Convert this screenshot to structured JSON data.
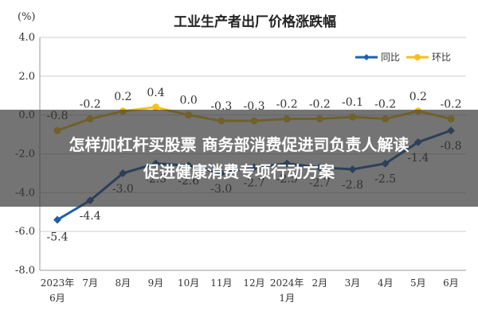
{
  "headline": {
    "line1": "怎样加杠杆买股票 商务部消费促进司负责人解读",
    "line2": "促进健康消费专项行动方案"
  },
  "colors": {
    "yoy": "#1f5fa8",
    "mom": "#f2c21b",
    "grid": "#cfcfcf",
    "band": "#323232"
  },
  "chart_data": {
    "type": "line",
    "title": "工业生产者出厂价格涨跌幅",
    "unit_label": "(%)",
    "ylim": [
      -8.0,
      4.0
    ],
    "yticks": [
      4.0,
      2.0,
      0.0,
      -2.0,
      -4.0,
      -6.0,
      -8.0
    ],
    "ytick_labels": [
      "4.0",
      "2.0",
      "0.0",
      "-2.0",
      "-4.0",
      "-6.0",
      "-8.0"
    ],
    "grid": true,
    "legend_position": "top-right",
    "categories": [
      [
        "2023年",
        "6月"
      ],
      [
        "7月"
      ],
      [
        "8月"
      ],
      [
        "9月"
      ],
      [
        "10月"
      ],
      [
        "11月"
      ],
      [
        "12月"
      ],
      [
        "2024年",
        "1月"
      ],
      [
        "2月"
      ],
      [
        "3月"
      ],
      [
        "4月"
      ],
      [
        "5月"
      ],
      [
        "6月"
      ]
    ],
    "series": [
      {
        "name": "同比",
        "color": "#1f5fa8",
        "values": [
          -5.4,
          -4.4,
          -3.0,
          -2.5,
          -2.6,
          -3.0,
          -2.7,
          -2.5,
          -2.7,
          -2.8,
          -2.5,
          -1.4,
          -0.8
        ],
        "labels": [
          "-5.4",
          "-4.4",
          "-3.0",
          "-2.5",
          "-2.6",
          "-3.0",
          "-2.7",
          "-2.5",
          "-2.7",
          "-2.8",
          "-2.5",
          "-1.4",
          "-0.8"
        ]
      },
      {
        "name": "环比",
        "color": "#f2c21b",
        "values": [
          -0.8,
          -0.2,
          0.2,
          0.4,
          0.0,
          -0.3,
          -0.3,
          -0.2,
          -0.2,
          -0.1,
          -0.2,
          0.2,
          -0.2
        ],
        "labels": [
          "-0.8",
          "-0.2",
          "0.2",
          "0.4",
          "0.0",
          "-0.3",
          "-0.3",
          "-0.2",
          "-0.2",
          "-0.1",
          "-0.2",
          "0.2",
          "-0.2"
        ]
      }
    ]
  }
}
